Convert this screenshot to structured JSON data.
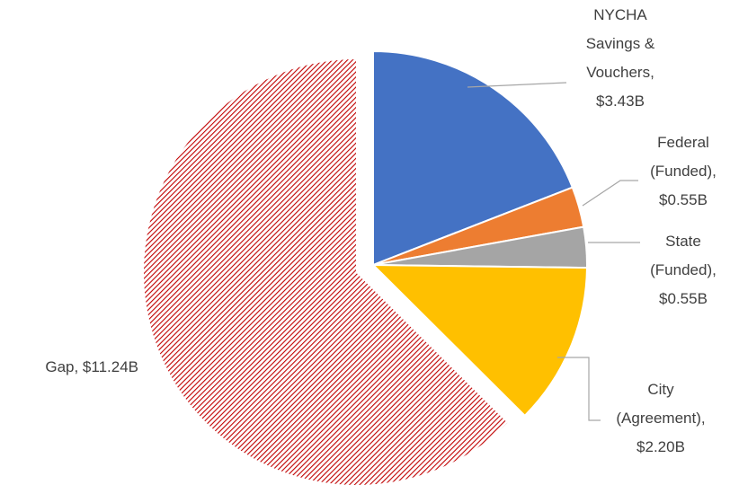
{
  "chart_data": {
    "type": "pie",
    "values": [
      3.43,
      0.55,
      0.55,
      2.2,
      11.24
    ],
    "value_labels": [
      "NYCHA Savings & Vouchers, $3.43B",
      "Federal (Funded), $0.55B",
      "State (Funded), $0.55B",
      "City (Agreement), $2.20B",
      "Gap, $11.24B"
    ],
    "colors": [
      "#4472c4",
      "#ed7d31",
      "#a5a5a5",
      "#ffc000",
      "#c00000"
    ],
    "hatched": [
      false,
      false,
      false,
      false,
      true
    ]
  }
}
